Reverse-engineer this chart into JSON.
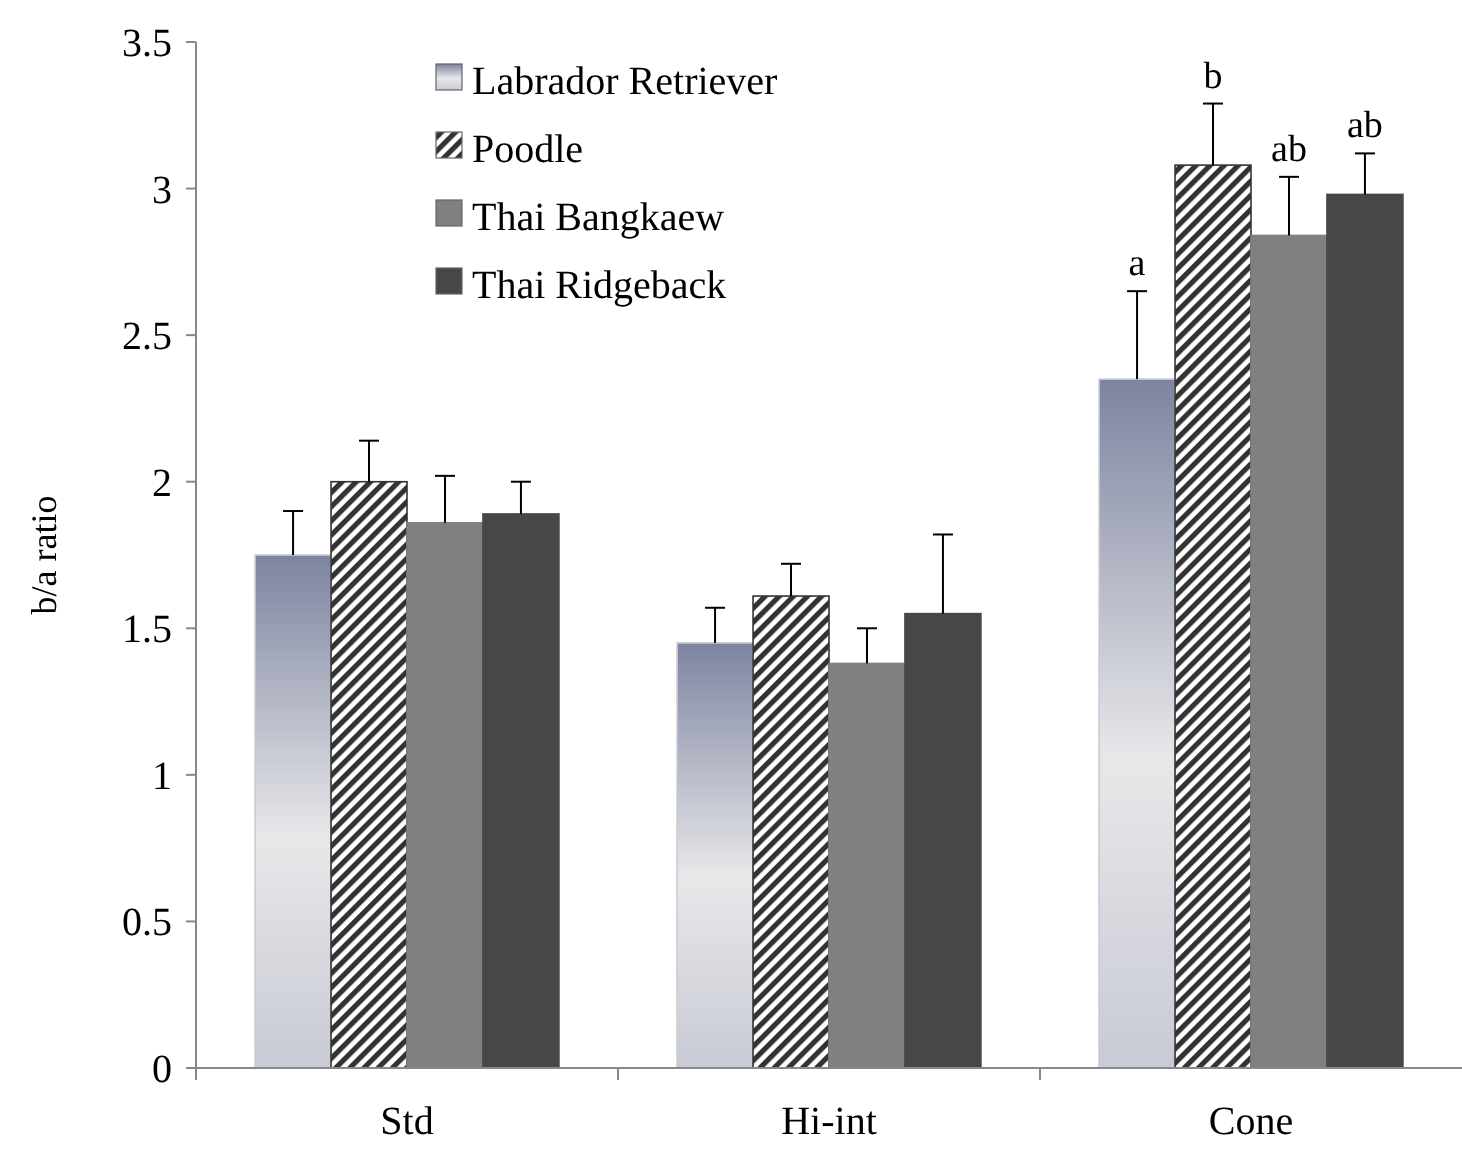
{
  "chart_data": {
    "type": "bar",
    "ylabel": "b/a ratio",
    "categories": [
      "Std",
      "Hi-int",
      "Cone"
    ],
    "ylim": [
      0,
      3.5
    ],
    "yticks": [
      0,
      0.5,
      1,
      1.5,
      2,
      2.5,
      3,
      3.5
    ],
    "grid": false,
    "legend": "top left",
    "series": [
      {
        "name": "Labrador Retriever",
        "color": "#c8cad4",
        "values": [
          1.75,
          1.45,
          2.35
        ],
        "errors": [
          0.15,
          0.12,
          0.3
        ],
        "value_labels": [
          null,
          null,
          "a"
        ]
      },
      {
        "name": "Poodle",
        "color": "#333333",
        "values": [
          2.0,
          1.61,
          3.08
        ],
        "errors": [
          0.14,
          0.11,
          0.21
        ],
        "value_labels": [
          null,
          null,
          "b"
        ]
      },
      {
        "name": "Thai Bangkaew",
        "color": "#808080",
        "values": [
          1.86,
          1.38,
          2.84
        ],
        "errors": [
          0.16,
          0.12,
          0.2
        ],
        "value_labels": [
          null,
          null,
          "ab"
        ]
      },
      {
        "name": "Thai Ridgeback",
        "color": "#474747",
        "values": [
          1.89,
          1.55,
          2.98
        ],
        "errors": [
          0.11,
          0.27,
          0.14
        ],
        "value_labels": [
          null,
          null,
          "ab"
        ]
      }
    ]
  }
}
